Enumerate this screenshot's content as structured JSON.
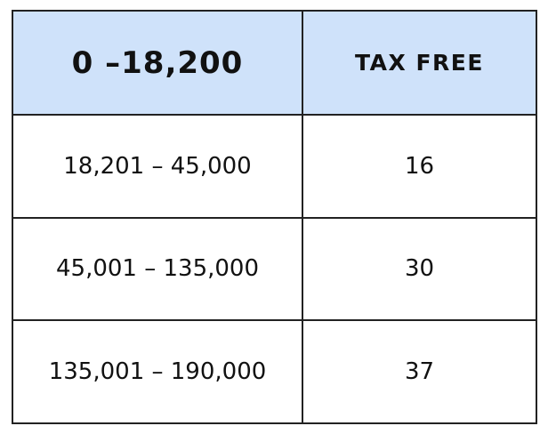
{
  "header": {
    "range": "0 –18,200",
    "rate": "TAX FREE"
  },
  "rows": [
    {
      "range": "18,201 – 45,000",
      "rate": "16"
    },
    {
      "range": "45,001 – 135,000",
      "rate": "30"
    },
    {
      "range": "135,001 – 190,000",
      "rate": "37"
    }
  ],
  "colors": {
    "header_bg": "#cfe2fa",
    "border": "#222222"
  }
}
